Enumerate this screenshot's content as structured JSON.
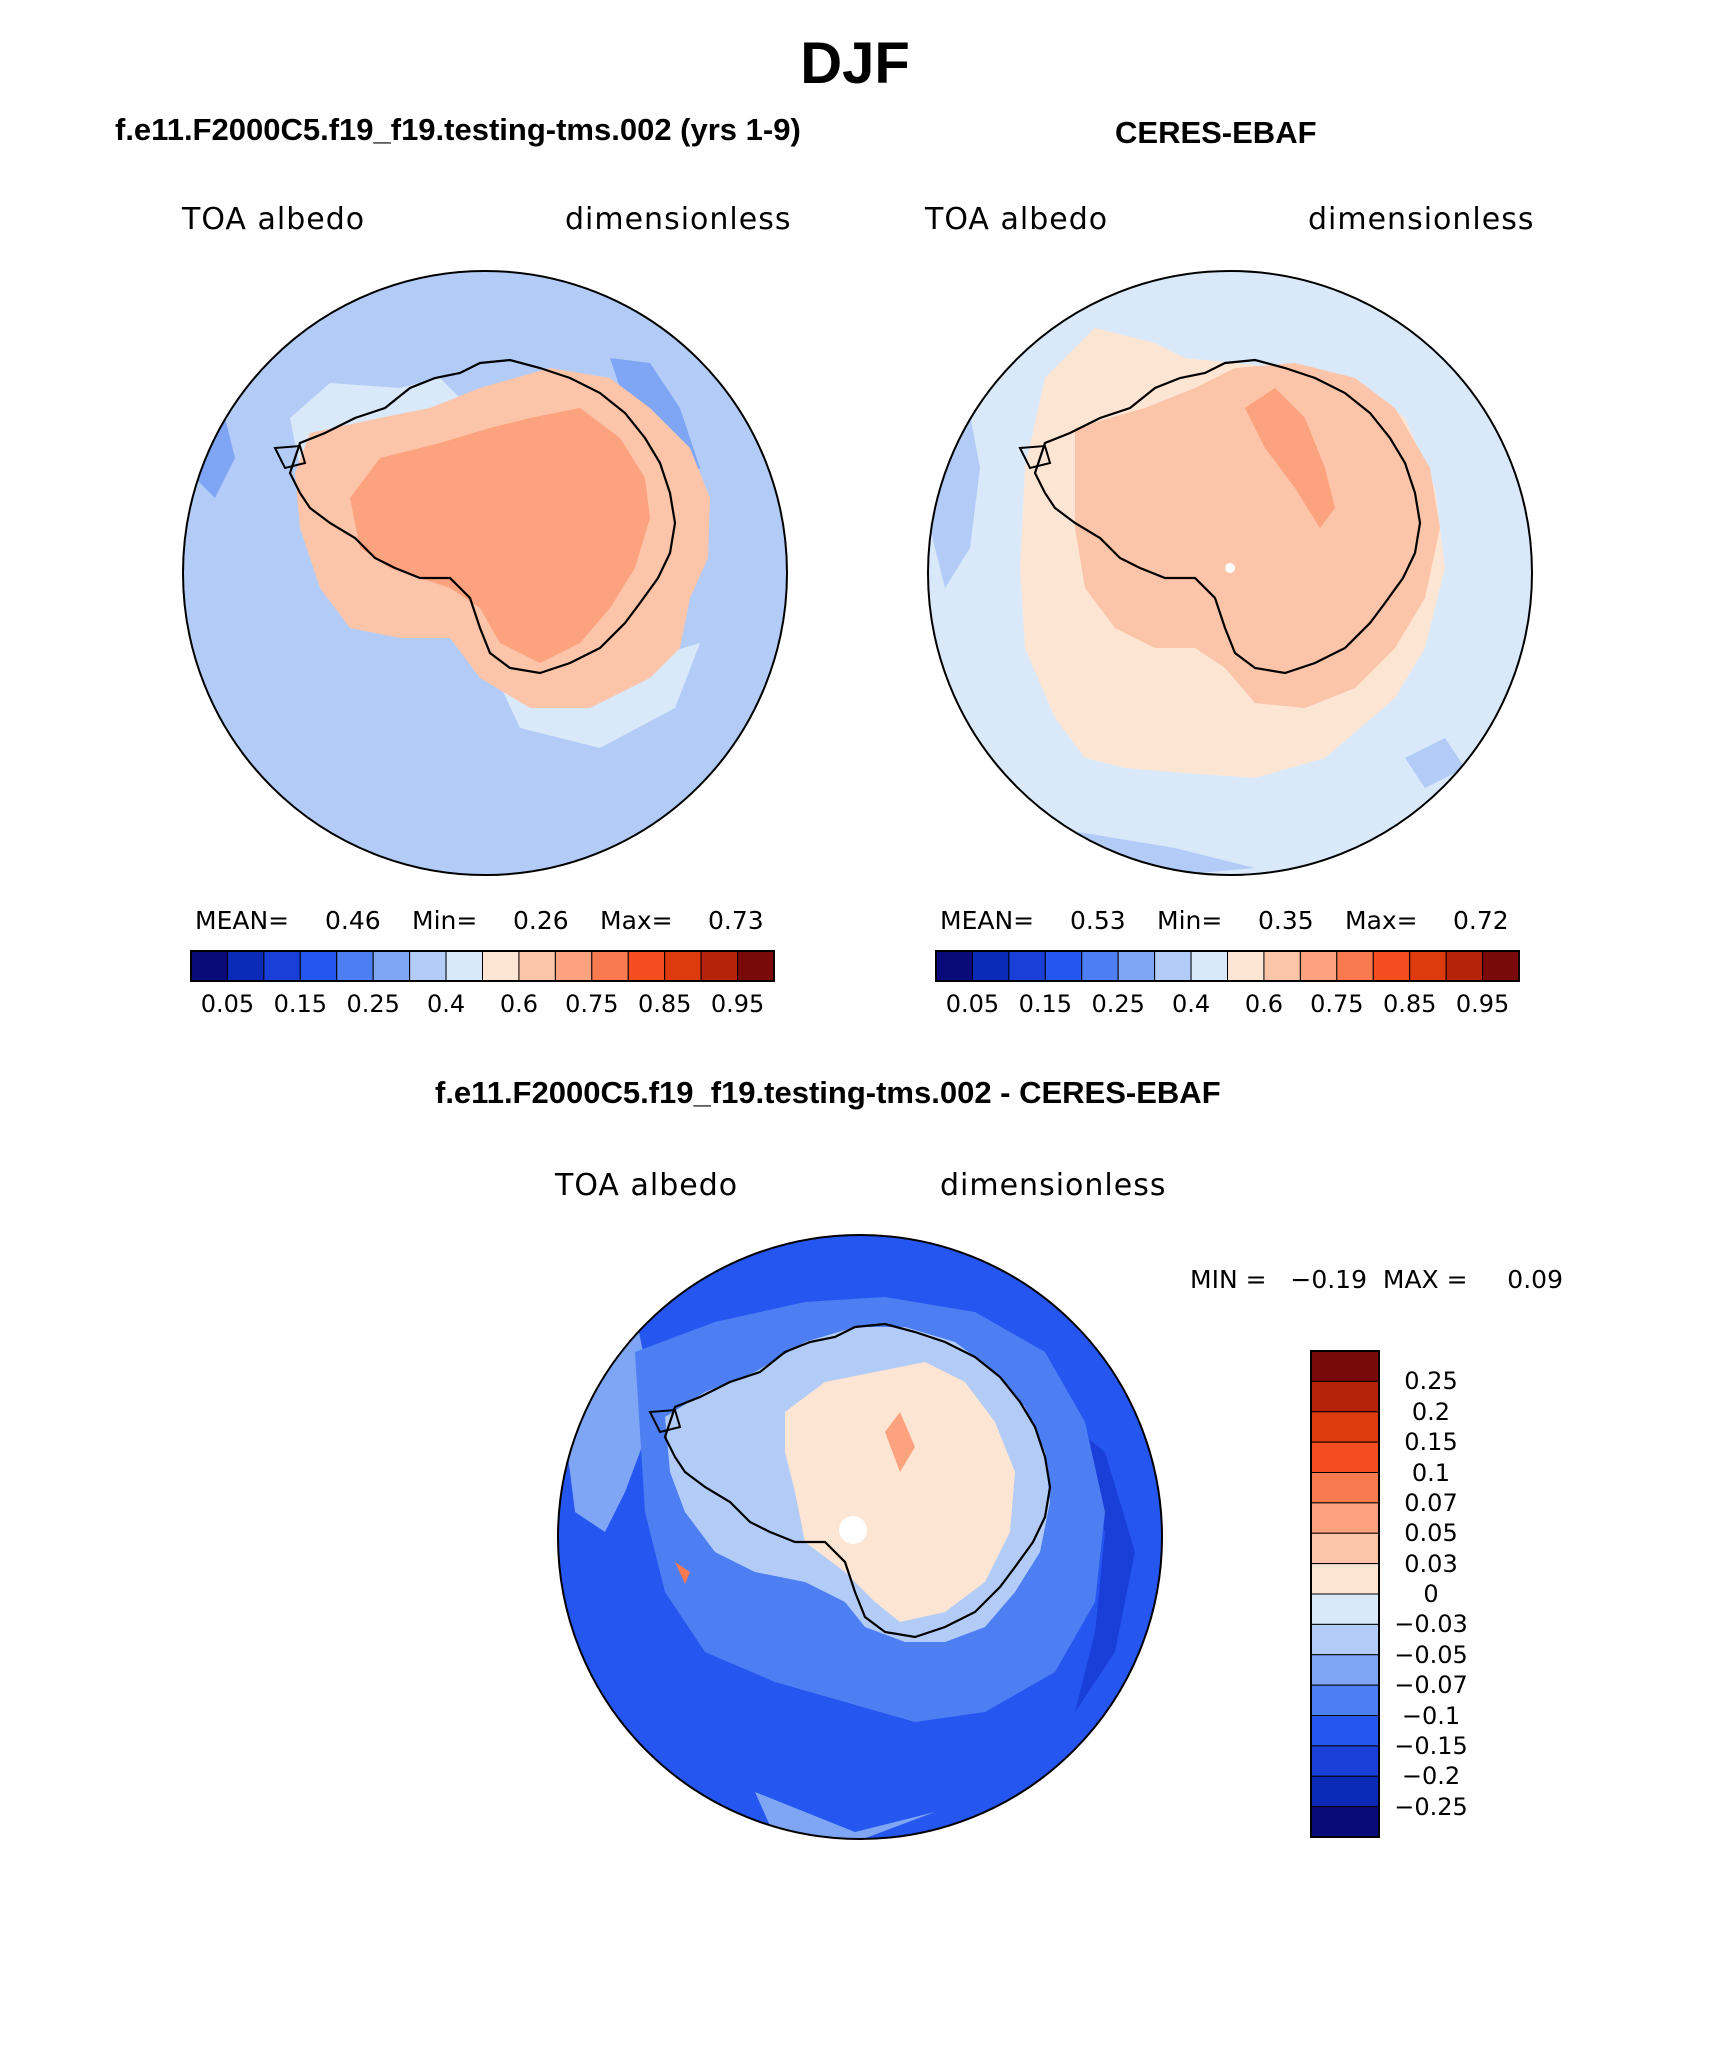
{
  "title": "DJF",
  "panels": {
    "model": {
      "case_title": "f.e11.F2000C5.f19_f19.testing-tms.002 (yrs 1-9)",
      "left_label": "TOA albedo",
      "right_label": "dimensionless",
      "mean_label": "MEAN=",
      "mean_value": "0.46",
      "min_label": "Min=",
      "min_value": "0.26",
      "max_label": "Max=",
      "max_value": "0.73"
    },
    "obs": {
      "case_title": "CERES-EBAF",
      "left_label": "TOA albedo",
      "right_label": "dimensionless",
      "mean_label": "MEAN=",
      "mean_value": "0.53",
      "min_label": "Min=",
      "min_value": "0.35",
      "max_label": "Max=",
      "max_value": "0.72"
    },
    "diff": {
      "case_title": "f.e11.F2000C5.f19_f19.testing-tms.002 - CERES-EBAF",
      "left_label": "TOA albedo",
      "right_label": "dimensionless",
      "minmax_text": "MIN =   −0.19  MAX =     0.09"
    }
  },
  "colorbars": {
    "albedo": {
      "colors": [
        "#0a0a7a",
        "#0b2ab8",
        "#1a3fd9",
        "#2656f0",
        "#4d7ef2",
        "#7fa5f5",
        "#b3ccf7",
        "#d9e9fa",
        "#fde5d4",
        "#fcc4a8",
        "#fca27e",
        "#f97a4f",
        "#f44d1f",
        "#dd3a0d",
        "#b5230b",
        "#7a0a0a"
      ],
      "ticks": [
        "0.05",
        "0.15",
        "0.25",
        "0.4",
        "0.6",
        "0.75",
        "0.85",
        "0.95"
      ]
    },
    "diff": {
      "colors": [
        "#7a0a0a",
        "#b5230b",
        "#dd3a0d",
        "#f44d1f",
        "#f97a4f",
        "#fca27e",
        "#fcc4a8",
        "#fde5d4",
        "#d9e9fa",
        "#b3ccf7",
        "#7fa5f5",
        "#4d7ef2",
        "#2656f0",
        "#1a3fd9",
        "#0b2ab8",
        "#0a0a7a"
      ],
      "ticks": [
        "0.25",
        "0.2",
        "0.15",
        "0.1",
        "0.07",
        "0.05",
        "0.03",
        "0",
        "−0.03",
        "−0.05",
        "−0.07",
        "−0.1",
        "−0.15",
        "−0.2",
        "−0.25"
      ]
    }
  },
  "map_colors": {
    "model_ocean": "#b3ccf7",
    "model_ice": "#fca27e",
    "model_coast": "#fcc4a8",
    "obs_ocean": "#d9e9fa",
    "obs_ice": "#fcc4a8",
    "obs_band": "#fde5d4",
    "diff_ocean": "#2656f0",
    "diff_inner": "#b3ccf7",
    "diff_ice": "#fde5d4"
  }
}
